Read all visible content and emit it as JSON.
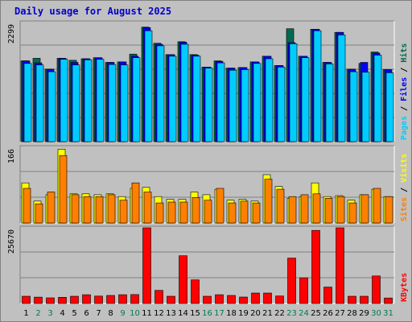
{
  "title": "Daily usage for August 2025",
  "colors": {
    "background": "#c0c0c0",
    "border": "#808080",
    "plot_bg": "#c0c0c0",
    "grid": "#808080",
    "title": "#0000cc",
    "hits": "#006a4e",
    "files": "#0000ff",
    "pages": "#00ccff",
    "visits": "#ffff00",
    "sites": "#ff8000",
    "kbytes": "#ff0000",
    "weekday_label": "#000000",
    "weekend_label": "#007c4e"
  },
  "chart_data": [
    {
      "type": "bar",
      "ylabel_max": "2299",
      "legend": [
        {
          "key": "pages",
          "label": "Pages"
        },
        {
          "key": "files",
          "label": "Files"
        },
        {
          "key": "hits",
          "label": "Hits"
        }
      ],
      "ylim": [
        0,
        2299
      ],
      "categories": [
        "1",
        "2",
        "3",
        "4",
        "5",
        "6",
        "7",
        "8",
        "9",
        "10",
        "11",
        "12",
        "13",
        "14",
        "15",
        "16",
        "17",
        "18",
        "19",
        "20",
        "21",
        "22",
        "23",
        "24",
        "25",
        "26",
        "27",
        "28",
        "29",
        "30",
        "31"
      ],
      "series": [
        {
          "name": "Hits",
          "key": "hits",
          "values": [
            1560,
            1610,
            1400,
            1610,
            1570,
            1600,
            1620,
            1530,
            1540,
            1690,
            2210,
            1900,
            1680,
            1930,
            1680,
            1440,
            1560,
            1420,
            1430,
            1540,
            1650,
            1470,
            2180,
            1650,
            2170,
            1530,
            2110,
            1400,
            1510,
            1730,
            1390
          ]
        },
        {
          "name": "Files",
          "key": "files",
          "values": [
            1560,
            1520,
            1400,
            1610,
            1530,
            1600,
            1620,
            1530,
            1540,
            1650,
            2200,
            1880,
            1680,
            1920,
            1670,
            1440,
            1550,
            1420,
            1430,
            1540,
            1650,
            1470,
            1910,
            1650,
            2170,
            1530,
            2110,
            1400,
            1530,
            1710,
            1390
          ]
        },
        {
          "name": "Pages",
          "key": "pages",
          "values": [
            1510,
            1480,
            1350,
            1590,
            1480,
            1580,
            1590,
            1490,
            1480,
            1620,
            2140,
            1850,
            1650,
            1880,
            1650,
            1420,
            1520,
            1380,
            1390,
            1510,
            1600,
            1440,
            1890,
            1620,
            2140,
            1500,
            2060,
            1350,
            1340,
            1670,
            1330
          ]
        }
      ]
    },
    {
      "type": "bar",
      "ylabel_max": "166",
      "legend": [
        {
          "key": "sites",
          "label": "Sites"
        },
        {
          "key": "visits",
          "label": "Visits"
        }
      ],
      "ylim": [
        0,
        166
      ],
      "categories": [
        "1",
        "2",
        "3",
        "4",
        "5",
        "6",
        "7",
        "8",
        "9",
        "10",
        "11",
        "12",
        "13",
        "14",
        "15",
        "16",
        "17",
        "18",
        "19",
        "20",
        "21",
        "22",
        "23",
        "24",
        "25",
        "26",
        "27",
        "28",
        "29",
        "30",
        "31"
      ],
      "series": [
        {
          "name": "Visits",
          "key": "visits",
          "values": [
            88,
            48,
            62,
            162,
            64,
            64,
            62,
            64,
            58,
            76,
            78,
            58,
            52,
            52,
            68,
            62,
            74,
            50,
            52,
            48,
            106,
            80,
            54,
            58,
            88,
            58,
            60,
            50,
            62,
            74,
            58
          ]
        },
        {
          "name": "Sites",
          "key": "sites",
          "values": [
            76,
            42,
            68,
            148,
            62,
            58,
            58,
            62,
            50,
            88,
            68,
            44,
            46,
            46,
            56,
            50,
            76,
            44,
            48,
            44,
            96,
            74,
            58,
            62,
            64,
            54,
            58,
            44,
            62,
            76,
            58
          ]
        }
      ]
    },
    {
      "type": "bar",
      "ylabel_max": "25670",
      "legend": [
        {
          "key": "kbytes",
          "label": "KBytes"
        }
      ],
      "ylim": [
        0,
        25670
      ],
      "categories": [
        "1",
        "2",
        "3",
        "4",
        "5",
        "6",
        "7",
        "8",
        "9",
        "10",
        "11",
        "12",
        "13",
        "14",
        "15",
        "16",
        "17",
        "18",
        "19",
        "20",
        "21",
        "22",
        "23",
        "24",
        "25",
        "26",
        "27",
        "28",
        "29",
        "30",
        "31"
      ],
      "series": [
        {
          "name": "KBytes",
          "key": "kbytes",
          "values": [
            2450,
            2170,
            1910,
            2090,
            2450,
            2990,
            2500,
            2720,
            2990,
            3020,
            25670,
            4460,
            2450,
            16200,
            7990,
            2450,
            2990,
            2720,
            2180,
            3540,
            3550,
            2550,
            15400,
            8700,
            24800,
            5580,
            25670,
            2450,
            2450,
            9340,
            1860
          ]
        }
      ]
    }
  ]
}
